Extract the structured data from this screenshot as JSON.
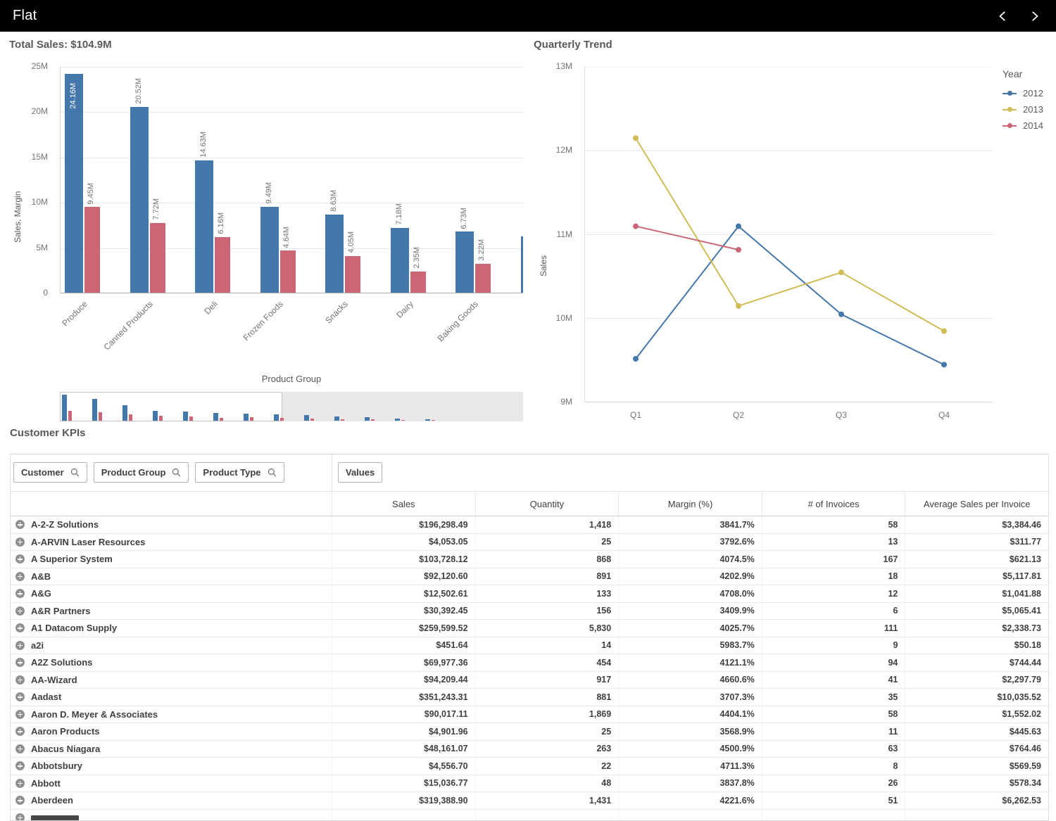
{
  "topbar": {
    "title": "Flat"
  },
  "chart_data": [
    {
      "type": "bar",
      "title": "Total Sales: $104.9M",
      "xlabel": "Product Group",
      "ylabel": "Sales, Margin",
      "ylim": [
        0,
        25
      ],
      "yticks": [
        "0",
        "5M",
        "10M",
        "15M",
        "20M",
        "25M"
      ],
      "ytick_vals": [
        0,
        5,
        10,
        15,
        20,
        25
      ],
      "grid": true,
      "categories": [
        "Produce",
        "Canned Products",
        "Deli",
        "Frozen Foods",
        "Snacks",
        "Dairy",
        "Baking Goods",
        ""
      ],
      "series": [
        {
          "name": "Sales",
          "color": "#4477aa",
          "values": [
            24.16,
            20.52,
            14.63,
            9.49,
            8.63,
            7.18,
            6.73,
            6.2
          ]
        },
        {
          "name": "Margin",
          "color": "#cc6677",
          "values": [
            9.45,
            7.72,
            6.16,
            4.64,
            4.05,
            2.35,
            3.22,
            null
          ]
        }
      ],
      "labels": [
        [
          "24.16M",
          "9.45M"
        ],
        [
          "20.52M",
          "7.72M"
        ],
        [
          "14.63M",
          "6.16M"
        ],
        [
          "9.49M",
          "4.64M"
        ],
        [
          "8.63M",
          "4.05M"
        ],
        [
          "7.18M",
          "2.35M"
        ],
        [
          "6.73M",
          "3.22M"
        ],
        [
          null,
          null
        ]
      ],
      "preview": [
        [
          24.16,
          9.45
        ],
        [
          20.52,
          7.72
        ],
        [
          14.63,
          6.16
        ],
        [
          9.49,
          4.64
        ],
        [
          8.63,
          4.05
        ],
        [
          7.18,
          2.35
        ],
        [
          6.73,
          3.22
        ],
        [
          6.2,
          2.4
        ],
        [
          5.1,
          1.9
        ],
        [
          4.2,
          1.6
        ],
        [
          3.1,
          1.2
        ],
        [
          2.2,
          0.9
        ],
        [
          1.4,
          0.5
        ]
      ]
    },
    {
      "type": "line",
      "title": "Quarterly Trend",
      "ylabel": "Sales",
      "legend_title": "Year",
      "legend_position": "right",
      "ylim": [
        9,
        13
      ],
      "yticks": [
        "9M",
        "10M",
        "11M",
        "12M",
        "13M"
      ],
      "ytick_vals": [
        9,
        10,
        11,
        12,
        13
      ],
      "grid": true,
      "x": [
        "Q1",
        "Q2",
        "Q3",
        "Q4"
      ],
      "series": [
        {
          "name": "2012",
          "color": "#4477aa",
          "values": [
            9.52,
            11.1,
            10.05,
            9.45
          ]
        },
        {
          "name": "2013",
          "color": "#d0bc55",
          "values": [
            12.15,
            10.15,
            10.55,
            9.85
          ]
        },
        {
          "name": "2014",
          "color": "#cc6677",
          "values": [
            11.1,
            10.82,
            null,
            null
          ]
        }
      ]
    }
  ],
  "kpi": {
    "title": "Customer KPIs",
    "dims": [
      "Customer",
      "Product Group",
      "Product Type"
    ],
    "values_label": "Values",
    "columns": [
      "Sales",
      "Quantity",
      "Margin (%)",
      "# of Invoices",
      "Average Sales per Invoice"
    ],
    "rows": [
      {
        "name": "A-2-Z Solutions",
        "cells": [
          "$196,298.49",
          "1,418",
          "3841.7%",
          "58",
          "$3,384.46"
        ]
      },
      {
        "name": "A-ARVIN Laser Resources",
        "cells": [
          "$4,053.05",
          "25",
          "3792.6%",
          "13",
          "$311.77"
        ]
      },
      {
        "name": "A Superior System",
        "cells": [
          "$103,728.12",
          "868",
          "4074.5%",
          "167",
          "$621.13"
        ]
      },
      {
        "name": "A&B",
        "cells": [
          "$92,120.60",
          "891",
          "4202.9%",
          "18",
          "$5,117.81"
        ]
      },
      {
        "name": "A&G",
        "cells": [
          "$12,502.61",
          "133",
          "4708.0%",
          "12",
          "$1,041.88"
        ]
      },
      {
        "name": "A&R Partners",
        "cells": [
          "$30,392.45",
          "156",
          "3409.9%",
          "6",
          "$5,065.41"
        ]
      },
      {
        "name": "A1 Datacom Supply",
        "cells": [
          "$259,599.52",
          "5,830",
          "4025.7%",
          "111",
          "$2,338.73"
        ]
      },
      {
        "name": "a2i",
        "cells": [
          "$451.64",
          "14",
          "5983.7%",
          "9",
          "$50.18"
        ]
      },
      {
        "name": "A2Z Solutions",
        "cells": [
          "$69,977.36",
          "454",
          "4121.1%",
          "94",
          "$744.44"
        ]
      },
      {
        "name": "AA-Wizard",
        "cells": [
          "$94,209.44",
          "917",
          "4660.6%",
          "41",
          "$2,297.79"
        ]
      },
      {
        "name": "Aadast",
        "cells": [
          "$351,243.31",
          "881",
          "3707.3%",
          "35",
          "$10,035.52"
        ]
      },
      {
        "name": "Aaron D. Meyer & Associates",
        "cells": [
          "$90,017.11",
          "1,869",
          "4404.1%",
          "58",
          "$1,552.02"
        ]
      },
      {
        "name": "Aaron Products",
        "cells": [
          "$4,901.96",
          "25",
          "3568.9%",
          "11",
          "$445.63"
        ]
      },
      {
        "name": "Abacus Niagara",
        "cells": [
          "$48,161.07",
          "263",
          "4500.9%",
          "63",
          "$764.46"
        ]
      },
      {
        "name": "Abbotsbury",
        "cells": [
          "$4,556.70",
          "22",
          "4711.3%",
          "8",
          "$569.59"
        ]
      },
      {
        "name": "Abbott",
        "cells": [
          "$15,036.77",
          "48",
          "3837.8%",
          "26",
          "$578.34"
        ]
      },
      {
        "name": "Aberdeen",
        "cells": [
          "$319,388.90",
          "1,431",
          "4221.6%",
          "51",
          "$6,262.53"
        ]
      }
    ],
    "partial_row_visible": true
  }
}
